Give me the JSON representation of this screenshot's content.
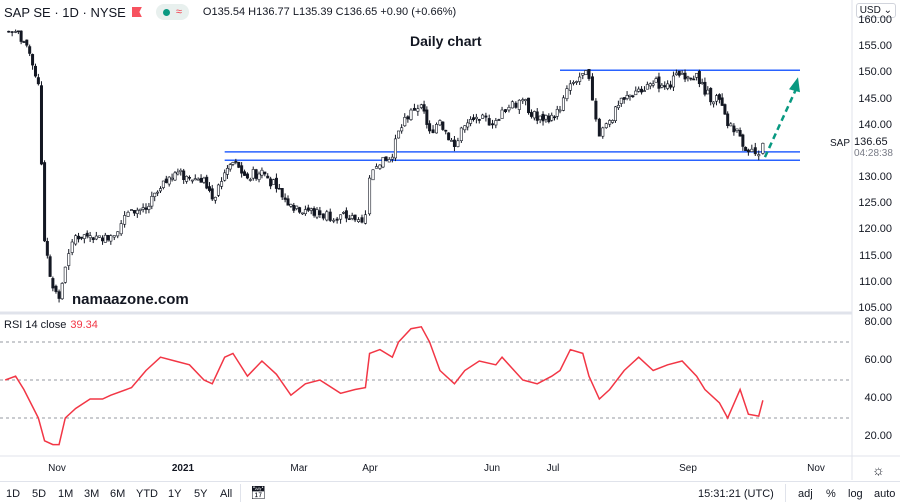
{
  "header": {
    "symbol": "SAP SE · 1D · NYSE",
    "open": "O135.54",
    "high": "H136.77",
    "low": "L135.39",
    "close": "C136.65",
    "change": "+0.90 (+0.66%)"
  },
  "currency": "USD",
  "annotations": {
    "title": "Daily chart",
    "watermark": "namaazone.com"
  },
  "price_axis": [
    "160.00",
    "155.00",
    "150.00",
    "145.00",
    "140.00",
    "130.00",
    "125.00",
    "120.00",
    "115.00",
    "110.00",
    "105.00"
  ],
  "last_price": {
    "symbol": "SAP",
    "value": "136.65",
    "countdown": "04:28:38"
  },
  "rsi": {
    "label": "RSI 14 close",
    "value": "39.34",
    "axis": [
      "80.00",
      "60.00",
      "40.00",
      "20.00"
    ]
  },
  "time_axis": [
    "Nov",
    "2021",
    "Mar",
    "Apr",
    "Jun",
    "Jul",
    "Sep",
    "Nov"
  ],
  "bottom_bar": {
    "ranges": [
      "1D",
      "5D",
      "1M",
      "3M",
      "6M",
      "YTD",
      "1Y",
      "5Y",
      "All"
    ],
    "clock": "15:31:21 (UTC)",
    "toggles": [
      "adj",
      "%",
      "log",
      "auto"
    ]
  },
  "colors": {
    "line": "#2962ff",
    "arrow": "#089981",
    "rsi": "#f23645",
    "candle": "#131722"
  },
  "chart_data": {
    "type": "candlestick",
    "dates": [
      "2020-10-07",
      "2020-10-12",
      "2020-10-16",
      "2020-10-23",
      "2020-10-26",
      "2020-10-30",
      "2020-11-02",
      "2020-11-05",
      "2020-11-10",
      "2020-11-17",
      "2020-11-23",
      "2020-11-27",
      "2020-12-07",
      "2020-12-14",
      "2020-12-21",
      "2020-12-28",
      "2021-01-04",
      "2021-01-11",
      "2021-01-15",
      "2021-01-21",
      "2021-01-25",
      "2021-02-01",
      "2021-02-08",
      "2021-02-15",
      "2021-02-22",
      "2021-03-01",
      "2021-03-08",
      "2021-03-18",
      "2021-03-25",
      "2021-03-30",
      "2021-04-01",
      "2021-04-06",
      "2021-04-12",
      "2021-04-15",
      "2021-04-21",
      "2021-04-26",
      "2021-04-30",
      "2021-05-05",
      "2021-05-12",
      "2021-05-17",
      "2021-05-24",
      "2021-06-01",
      "2021-06-04",
      "2021-06-14",
      "2021-06-21",
      "2021-06-28",
      "2021-07-02",
      "2021-07-07",
      "2021-07-13",
      "2021-07-16",
      "2021-07-21",
      "2021-07-26",
      "2021-08-02",
      "2021-08-09",
      "2021-08-16",
      "2021-08-23",
      "2021-08-30",
      "2021-09-06",
      "2021-09-10",
      "2021-09-17",
      "2021-09-21",
      "2021-09-27",
      "2021-10-01",
      "2021-10-06",
      "2021-10-08"
    ],
    "close": [
      158,
      158,
      156,
      148,
      118,
      109,
      107,
      113,
      119,
      119,
      118,
      119,
      124,
      124,
      128,
      131,
      130,
      130,
      126,
      131,
      133,
      130,
      131.5,
      128,
      125,
      124,
      123,
      123,
      122,
      123,
      130,
      132.5,
      134,
      139,
      143,
      144,
      139,
      141,
      136,
      140,
      141,
      141,
      143,
      145,
      141,
      142,
      143,
      148,
      150,
      149,
      138,
      141,
      145,
      147,
      148,
      148,
      150,
      150,
      146,
      145,
      140,
      138,
      135,
      134.5,
      136.65
    ],
    "rsi": [
      50,
      52,
      45,
      30,
      18,
      16,
      16,
      30,
      35,
      40,
      40,
      42,
      46,
      55,
      62,
      60,
      58,
      50,
      48,
      62,
      64,
      52,
      60,
      53,
      42,
      48,
      50,
      43,
      45,
      46,
      64,
      66,
      62,
      70,
      77,
      78,
      70,
      55,
      48,
      55,
      60,
      58,
      62,
      50,
      48,
      52,
      55,
      66,
      64,
      52,
      40,
      45,
      55,
      62,
      55,
      58,
      60,
      52,
      45,
      38,
      30,
      45,
      32,
      31,
      39.34
    ],
    "price_range": [
      105,
      160
    ],
    "rsi_range": [
      20,
      80
    ],
    "rsi_levels": [
      70,
      50,
      30
    ],
    "horizontal_levels": [
      {
        "price": 150.6,
        "from": "2021-07-02"
      },
      {
        "price": 135,
        "from": "2021-01-21"
      },
      {
        "price": 133.4,
        "from": "2021-01-21"
      }
    ],
    "projection_arrow": {
      "from": [
        "2021-10-09",
        134
      ],
      "to": [
        "2021-10-24",
        148.5
      ]
    }
  }
}
